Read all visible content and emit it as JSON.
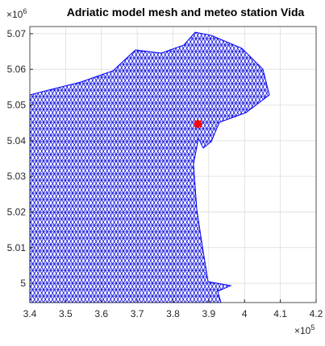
{
  "chart_data": {
    "type": "scatter",
    "title": "Adriatic model mesh and meteo station Vida",
    "x": [
      387000
    ],
    "values": [
      5044700
    ],
    "color": "#ff0000",
    "mesh_color": "#0000ff",
    "xlim": [
      340000,
      420000
    ],
    "xticks": [
      {
        "value": 340000,
        "label": "3.4"
      },
      {
        "value": 350000,
        "label": "3.5"
      },
      {
        "value": 360000,
        "label": "3.6"
      },
      {
        "value": 370000,
        "label": "3.7"
      },
      {
        "value": 380000,
        "label": "3.8"
      },
      {
        "value": 390000,
        "label": "3.9"
      },
      {
        "value": 400000,
        "label": "4"
      },
      {
        "value": 410000,
        "label": "4.1"
      },
      {
        "value": 420000,
        "label": "4.2"
      }
    ],
    "ylim": [
      4994600,
      5072000
    ],
    "yticks": [
      {
        "value": 5000000,
        "label": "5"
      },
      {
        "value": 5010000,
        "label": "5.01"
      },
      {
        "value": 5020000,
        "label": "5.02"
      },
      {
        "value": 5030000,
        "label": "5.03"
      },
      {
        "value": 5040000,
        "label": "5.04"
      },
      {
        "value": 5050000,
        "label": "5.05"
      },
      {
        "value": 5060000,
        "label": "5.06"
      },
      {
        "value": 5070000,
        "label": "5.07"
      }
    ],
    "x_multiplier": {
      "base": "×10",
      "exponent": "5"
    },
    "y_multiplier": {
      "base": "×10",
      "exponent": "6"
    },
    "grid": true
  }
}
